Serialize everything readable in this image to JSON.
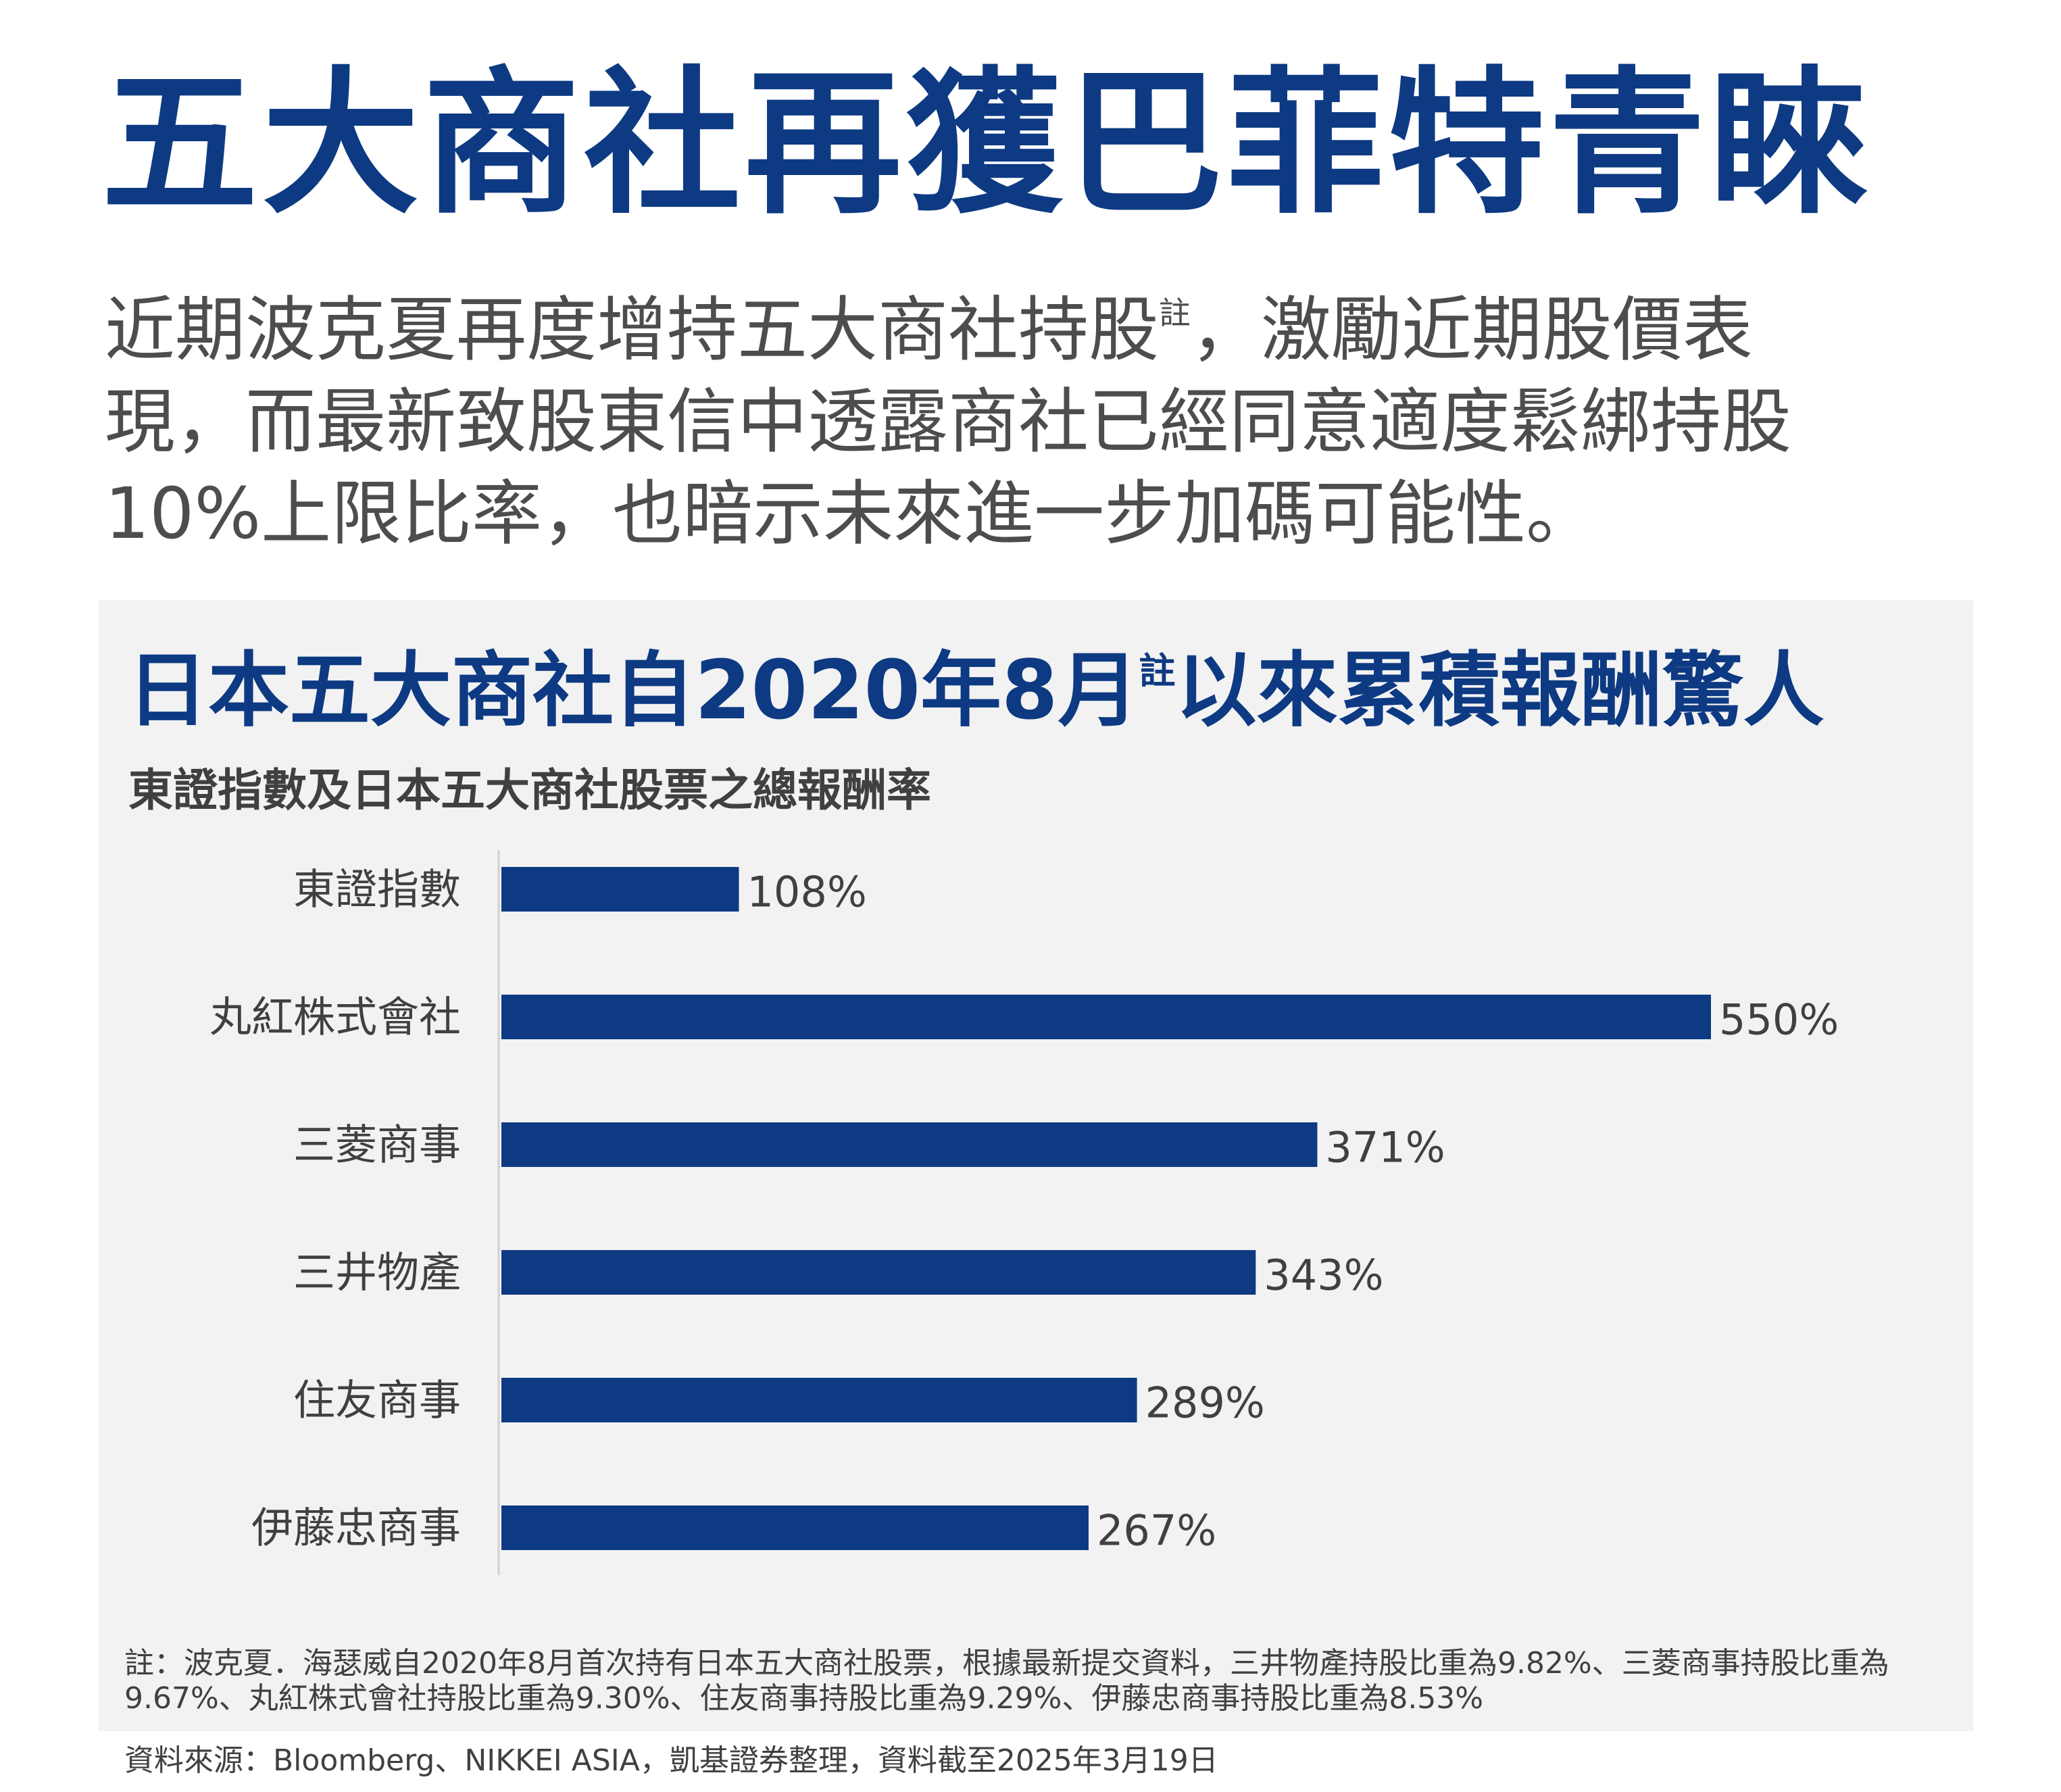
{
  "headline": "五大商社再獲巴菲特青睞",
  "intro": {
    "line1_text": "近期波克夏再度增持五大商社持股",
    "line1_mark": "註",
    "line1_rest": "，激勵近期股價表",
    "line2": "現，而最新致股東信中透露商社已經同意適度鬆綁持股",
    "line3": "10%上限比率，也暗示未來進一步加碼可能性。"
  },
  "footnote": "註：波克夏．海瑟威自2020年8月首次持有日本五大商社股票，根據最新提交資料，三井物產持股比重為9.82%、三菱商事持股比重為9.67%、丸紅株式會社持股比重為9.30%、住友商事持股比重為9.29%、伊藤忠商事持股比重為8.53%",
  "source": "資料來源：Bloomberg、NIKKEI ASIA，凱基證券整理，資料截至2025年3月19日",
  "chart_data": {
    "type": "bar",
    "orientation": "horizontal",
    "title_text": "日本五大商社自2020年8月",
    "title_mark": "註",
    "title_rest": "以來累積報酬驚人",
    "subtitle": "東證指數及日本五大商社股票之總報酬率",
    "categories": [
      "東證指數",
      "丸紅株式會社",
      "三菱商事",
      "三井物產",
      "住友商事",
      "伊藤忠商事"
    ],
    "values": [
      108,
      550,
      371,
      343,
      289,
      267
    ],
    "value_labels": [
      "108%",
      "550%",
      "371%",
      "343%",
      "289%",
      "267%"
    ],
    "unit": "%",
    "xlim": [
      0,
      550
    ],
    "bar_color": "#0d3a82",
    "grid": false,
    "legend": "none"
  }
}
